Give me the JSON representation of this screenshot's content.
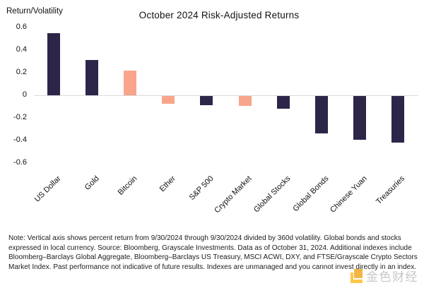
{
  "chart_data": {
    "type": "bar",
    "title": "October 2024 Risk-Adjusted Returns",
    "ylabel": "Return/Volatility",
    "categories": [
      "US Dollar",
      "Gold",
      "Bitcoin",
      "Ether",
      "S&P 500",
      "Crypto Market",
      "Global Stocks",
      "Global Bonds",
      "Chinese Yuan",
      "Treasuries"
    ],
    "values": [
      0.55,
      0.31,
      0.22,
      -0.07,
      -0.08,
      -0.09,
      -0.11,
      -0.33,
      -0.39,
      -0.41
    ],
    "bar_colors": [
      "#2d2649",
      "#2d2649",
      "#f9a58c",
      "#f9a58c",
      "#2d2649",
      "#f9a58c",
      "#2d2649",
      "#2d2649",
      "#2d2649",
      "#2d2649"
    ],
    "palette": {
      "dark_navy": "#2d2649",
      "salmon": "#f9a58c"
    },
    "ytick_labels": [
      "0.6",
      "0.4",
      "0.2",
      "0",
      "-0.2",
      "-0.4",
      "-0.6"
    ],
    "ytick_values": [
      0.6,
      0.4,
      0.2,
      0,
      -0.2,
      -0.4,
      -0.6
    ],
    "ylim": [
      -0.65,
      0.65
    ],
    "grid": "zero-baseline-only",
    "baseline_color": "#d9d9d9",
    "legend": "none",
    "xlabel": ""
  },
  "note": "Note: Vertical axis shows percent return from 9/30/2024 through 9/30/2024 divided by 360d volatility. Global bonds and stocks expressed in local currency. Source: Bloomberg, Grayscale Investments. Data as of October 31, 2024. Additional indexes include Bloomberg–Barclays Global Aggregate, Bloomberg–Barclays US Treasury, MSCI ACWI, DXY, and FTSE/Grayscale Crypto Sectors Market Index. Past performance not indicative of future results. Indexes are unmanaged and you cannot invest directly in an index.",
  "watermark": {
    "text": "金色财经",
    "icon": "jinse-finance-logo-icon",
    "icon_color_bright": "#FFB400",
    "icon_color_deep": "#ED9A00"
  }
}
